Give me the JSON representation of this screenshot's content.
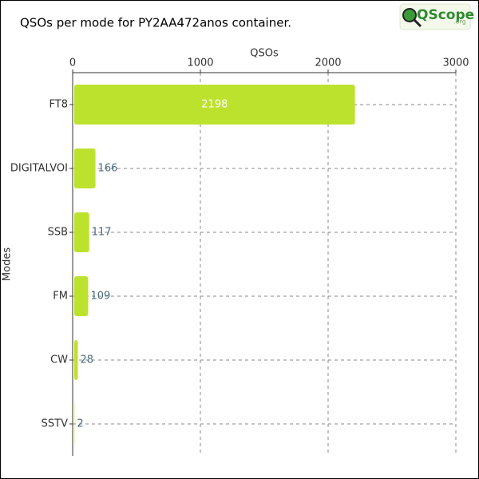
{
  "chart_data": {
    "type": "hbar",
    "title": "QSOs per mode for PY2AA472anos container.",
    "logo": "QScope",
    "logo_suffix": ".org",
    "xlabel": "QSOs",
    "ylabel": "Modes",
    "categories": [
      "FT8",
      "DIGITALVOI",
      "SSB",
      "FM",
      "CW",
      "SSTV"
    ],
    "values": [
      2198,
      166,
      117,
      109,
      28,
      2
    ],
    "color": "#bde22e",
    "xlim": [
      0,
      3000
    ],
    "xticks": [
      0,
      1000,
      2000,
      3000
    ],
    "grid": true
  }
}
